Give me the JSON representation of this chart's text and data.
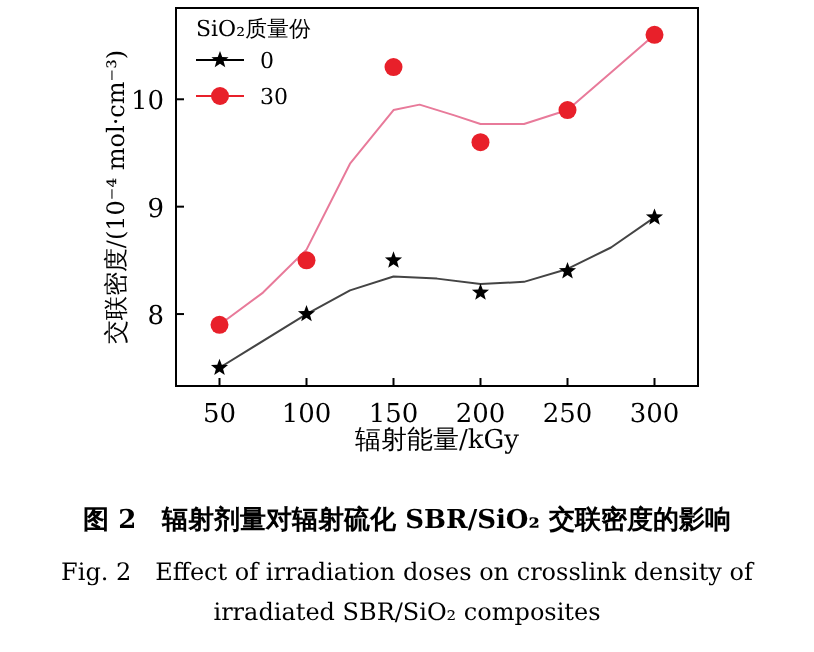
{
  "chart_data": {
    "type": "scatter",
    "xlabel": "辐射能量/kGy",
    "ylabel": "交联密度/(10⁻⁴ mol·cm⁻³)",
    "legend_title": "SiO₂质量份",
    "x": [
      50,
      100,
      150,
      200,
      250,
      300
    ],
    "xlim": [
      25,
      325
    ],
    "xticks": [
      50,
      100,
      150,
      200,
      250,
      300
    ],
    "ylim": [
      7.33,
      10.85
    ],
    "yticks": [
      8,
      9,
      10
    ],
    "legend": "top left",
    "series": [
      {
        "name": "0",
        "type": "scatter",
        "marker": "star",
        "color": "#000000",
        "values": [
          7.5,
          8.0,
          8.5,
          8.2,
          8.4,
          8.9
        ]
      },
      {
        "name": "30",
        "type": "scatter",
        "marker": "circle",
        "color": "#e8202a",
        "values": [
          7.9,
          8.5,
          10.3,
          9.6,
          9.9,
          10.6
        ]
      },
      {
        "type": "line",
        "color": "#444444",
        "x": [
          50,
          100,
          125,
          150,
          175,
          200,
          225,
          250,
          275,
          300
        ],
        "values": [
          7.5,
          8.0,
          8.22,
          8.35,
          8.33,
          8.28,
          8.3,
          8.42,
          8.62,
          8.9
        ]
      },
      {
        "type": "line",
        "color": "#e87a9a",
        "x": [
          50,
          75,
          100,
          125,
          150,
          165,
          185,
          200,
          225,
          250,
          275,
          300
        ],
        "values": [
          7.9,
          8.2,
          8.6,
          9.4,
          9.9,
          9.95,
          9.85,
          9.77,
          9.77,
          9.9,
          10.25,
          10.6
        ]
      }
    ],
    "annotations": [
      "图 2　辐射剂量对辐射硫化 SBR/SiO₂ 交联密度的影响",
      "Fig. 2　Effect of irradiation doses on crosslink density of irradiated SBR/SiO₂ composites"
    ]
  }
}
